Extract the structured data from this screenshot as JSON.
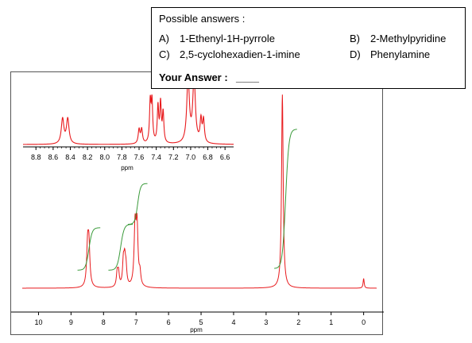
{
  "question": {
    "prompt": "Possible answers :",
    "options": [
      {
        "letter": "A)",
        "text": "1-Ethenyl-1H-pyrrole"
      },
      {
        "letter": "B)",
        "text": "2-Methylpyridine"
      },
      {
        "letter": "C)",
        "text": "2,5-cyclohexadien-1-imine"
      },
      {
        "letter": "D)",
        "text": "Phenylamine"
      }
    ],
    "your_answer_label": "Your Answer :",
    "answer_blank": "____"
  },
  "colors": {
    "spectrum": "#e8191c",
    "integral": "#3a9a3a",
    "axis": "#000000"
  },
  "chart_data": [
    {
      "type": "line",
      "title": "",
      "xlabel": "ppm",
      "ylabel": "",
      "xlim": [
        10.5,
        -0.4
      ],
      "x_reversed": true,
      "xticks": [
        10,
        9,
        8,
        7,
        6,
        5,
        4,
        3,
        2,
        1,
        0
      ],
      "peaks": [
        {
          "ppm": 8.49,
          "height": 0.2,
          "width": 0.035
        },
        {
          "ppm": 8.45,
          "height": 0.2,
          "width": 0.035
        },
        {
          "ppm": 7.58,
          "height": 0.07,
          "width": 0.03
        },
        {
          "ppm": 7.54,
          "height": 0.07,
          "width": 0.03
        },
        {
          "ppm": 7.39,
          "height": 0.12,
          "width": 0.03
        },
        {
          "ppm": 7.35,
          "height": 0.12,
          "width": 0.03
        },
        {
          "ppm": 7.31,
          "height": 0.09,
          "width": 0.03
        },
        {
          "ppm": 7.03,
          "height": 0.3,
          "width": 0.035
        },
        {
          "ppm": 6.97,
          "height": 0.3,
          "width": 0.035
        },
        {
          "ppm": 6.88,
          "height": 0.06,
          "width": 0.03
        },
        {
          "ppm": 2.5,
          "height": 1.0,
          "width": 0.03
        },
        {
          "ppm": 0.0,
          "height": 0.05,
          "width": 0.02
        }
      ],
      "integrals": [
        {
          "from": 8.8,
          "to": 8.1,
          "level_start": 0.05,
          "level_end": 0.3
        },
        {
          "from": 7.85,
          "to": 7.1,
          "level_start": 0.05,
          "level_end": 0.32
        },
        {
          "from": 7.25,
          "to": 6.65,
          "level_start": 0.32,
          "level_end": 0.56
        },
        {
          "from": 2.75,
          "to": 2.05,
          "level_start": 0.06,
          "level_end": 0.88
        }
      ]
    },
    {
      "type": "line",
      "title": "",
      "xlabel": "ppm",
      "ylabel": "",
      "xlim": [
        8.95,
        6.5
      ],
      "x_reversed": true,
      "xticks": [
        8.8,
        8.6,
        8.4,
        8.2,
        8.0,
        7.8,
        7.6,
        7.4,
        7.2,
        7.0,
        6.8,
        6.6
      ],
      "peaks": [
        {
          "ppm": 8.49,
          "height": 0.5,
          "width": 0.018
        },
        {
          "ppm": 8.43,
          "height": 0.5,
          "width": 0.018
        },
        {
          "ppm": 7.6,
          "height": 0.28,
          "width": 0.012
        },
        {
          "ppm": 7.57,
          "height": 0.28,
          "width": 0.012
        },
        {
          "ppm": 7.47,
          "height": 0.8,
          "width": 0.01
        },
        {
          "ppm": 7.45,
          "height": 0.8,
          "width": 0.01
        },
        {
          "ppm": 7.38,
          "height": 0.72,
          "width": 0.01
        },
        {
          "ppm": 7.35,
          "height": 0.78,
          "width": 0.01
        },
        {
          "ppm": 7.32,
          "height": 0.6,
          "width": 0.01
        },
        {
          "ppm": 7.03,
          "height": 1.3,
          "width": 0.018
        },
        {
          "ppm": 6.96,
          "height": 1.3,
          "width": 0.018
        },
        {
          "ppm": 6.88,
          "height": 0.45,
          "width": 0.012
        },
        {
          "ppm": 6.85,
          "height": 0.45,
          "width": 0.012
        }
      ]
    }
  ]
}
